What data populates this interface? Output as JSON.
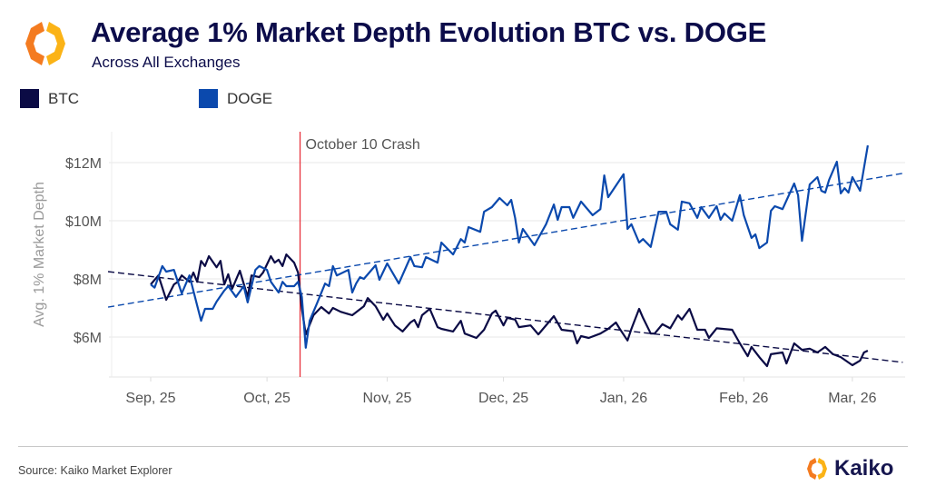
{
  "header": {
    "title": "Average 1% Market Depth Evolution BTC vs. DOGE",
    "subtitle": "Across All Exchanges",
    "logo": "kaiko-logo-icon"
  },
  "footer": {
    "source": "Source: Kaiko Market Explorer",
    "brand": "Kaiko"
  },
  "colors": {
    "btc": "#0b0b45",
    "doge": "#0b49ad",
    "annotation_line": "#e8323c",
    "logo_orange": "#f47b20",
    "logo_yellow": "#fbb316"
  },
  "chart_data": {
    "type": "line",
    "title": "Average 1% Market Depth Evolution BTC vs. DOGE",
    "subtitle": "Across All Exchanges",
    "xlabel": "",
    "ylabel": "Avg. 1% Market Depth",
    "legend_position": "top-left",
    "grid": "horizontal",
    "ylim": [
      4.6,
      13.1
    ],
    "yticks": [
      {
        "value": 6,
        "label": "$6M"
      },
      {
        "value": 8,
        "label": "$8M"
      },
      {
        "value": 10,
        "label": "$10M"
      },
      {
        "value": 12,
        "label": "$12M"
      }
    ],
    "xlim": [
      "2025-08-21",
      "2026-03-14"
    ],
    "xticks": [
      {
        "date": "2025-09-01",
        "label": "Sep, 25"
      },
      {
        "date": "2025-10-01",
        "label": "Oct, 25"
      },
      {
        "date": "2025-11-01",
        "label": "Nov, 25"
      },
      {
        "date": "2025-12-01",
        "label": "Dec, 25"
      },
      {
        "date": "2026-01-01",
        "label": "Jan, 26"
      },
      {
        "date": "2026-02-01",
        "label": "Feb, 26"
      },
      {
        "date": "2026-03-01",
        "label": "Mar, 26"
      }
    ],
    "annotations": [
      {
        "date": "2025-10-10",
        "label": "October 10 Crash"
      }
    ],
    "series": [
      {
        "name": "BTC",
        "unit": "$M",
        "points": [
          [
            "2025-09-01",
            7.81
          ],
          [
            "2025-09-03",
            8.12
          ],
          [
            "2025-09-05",
            7.28
          ],
          [
            "2025-09-07",
            7.81
          ],
          [
            "2025-09-08",
            7.9
          ],
          [
            "2025-09-09",
            8.12
          ],
          [
            "2025-09-11",
            7.9
          ],
          [
            "2025-09-12",
            8.22
          ],
          [
            "2025-09-13",
            7.9
          ],
          [
            "2025-09-14",
            8.62
          ],
          [
            "2025-09-15",
            8.44
          ],
          [
            "2025-09-16",
            8.78
          ],
          [
            "2025-09-18",
            8.4
          ],
          [
            "2025-09-19",
            8.62
          ],
          [
            "2025-09-20",
            7.81
          ],
          [
            "2025-09-21",
            8.16
          ],
          [
            "2025-09-22",
            7.66
          ],
          [
            "2025-09-24",
            8.28
          ],
          [
            "2025-09-26",
            7.38
          ],
          [
            "2025-09-27",
            8.12
          ],
          [
            "2025-09-29",
            8.06
          ],
          [
            "2025-09-30",
            8.22
          ],
          [
            "2025-10-02",
            8.78
          ],
          [
            "2025-10-03",
            8.56
          ],
          [
            "2025-10-04",
            8.66
          ],
          [
            "2025-10-05",
            8.44
          ],
          [
            "2025-10-06",
            8.84
          ],
          [
            "2025-10-08",
            8.56
          ],
          [
            "2025-10-09",
            8.22
          ],
          [
            "2025-10-10",
            6.97
          ],
          [
            "2025-10-11",
            6.09
          ],
          [
            "2025-10-13",
            6.75
          ],
          [
            "2025-10-15",
            7.03
          ],
          [
            "2025-10-17",
            6.81
          ],
          [
            "2025-10-18",
            7.0
          ],
          [
            "2025-10-20",
            6.87
          ],
          [
            "2025-10-23",
            6.75
          ],
          [
            "2025-10-26",
            7.06
          ],
          [
            "2025-10-27",
            7.34
          ],
          [
            "2025-10-29",
            7.06
          ],
          [
            "2025-10-31",
            6.59
          ],
          [
            "2025-11-01",
            6.81
          ],
          [
            "2025-11-03",
            6.4
          ],
          [
            "2025-11-05",
            6.19
          ],
          [
            "2025-11-07",
            6.5
          ],
          [
            "2025-11-08",
            6.59
          ],
          [
            "2025-11-09",
            6.34
          ],
          [
            "2025-11-10",
            6.75
          ],
          [
            "2025-11-12",
            6.97
          ],
          [
            "2025-11-14",
            6.34
          ],
          [
            "2025-11-15",
            6.28
          ],
          [
            "2025-11-18",
            6.19
          ],
          [
            "2025-11-20",
            6.56
          ],
          [
            "2025-11-21",
            6.12
          ],
          [
            "2025-11-24",
            5.97
          ],
          [
            "2025-11-26",
            6.25
          ],
          [
            "2025-11-28",
            6.81
          ],
          [
            "2025-11-29",
            6.91
          ],
          [
            "2025-12-01",
            6.4
          ],
          [
            "2025-12-02",
            6.66
          ],
          [
            "2025-12-04",
            6.6
          ],
          [
            "2025-12-05",
            6.34
          ],
          [
            "2025-12-08",
            6.4
          ],
          [
            "2025-12-10",
            6.09
          ],
          [
            "2025-12-14",
            6.72
          ],
          [
            "2025-12-16",
            6.25
          ],
          [
            "2025-12-19",
            6.2
          ],
          [
            "2025-12-20",
            5.78
          ],
          [
            "2025-12-21",
            6.03
          ],
          [
            "2025-12-23",
            5.97
          ],
          [
            "2025-12-26",
            6.12
          ],
          [
            "2025-12-28",
            6.28
          ],
          [
            "2025-12-30",
            6.5
          ],
          [
            "2025-12-31",
            6.28
          ],
          [
            "2026-01-02",
            5.88
          ],
          [
            "2026-01-03",
            6.28
          ],
          [
            "2026-01-05",
            6.97
          ],
          [
            "2026-01-06",
            6.66
          ],
          [
            "2026-01-08",
            6.12
          ],
          [
            "2026-01-09",
            6.12
          ],
          [
            "2026-01-11",
            6.44
          ],
          [
            "2026-01-13",
            6.3
          ],
          [
            "2026-01-15",
            6.75
          ],
          [
            "2026-01-16",
            6.6
          ],
          [
            "2026-01-18",
            6.97
          ],
          [
            "2026-01-20",
            6.25
          ],
          [
            "2026-01-22",
            6.25
          ],
          [
            "2026-01-23",
            5.97
          ],
          [
            "2026-01-25",
            6.3
          ],
          [
            "2026-01-29",
            6.25
          ],
          [
            "2026-01-31",
            5.78
          ],
          [
            "2026-02-02",
            5.34
          ],
          [
            "2026-02-03",
            5.66
          ],
          [
            "2026-02-05",
            5.31
          ],
          [
            "2026-02-07",
            5.0
          ],
          [
            "2026-02-08",
            5.41
          ],
          [
            "2026-02-11",
            5.47
          ],
          [
            "2026-02-12",
            5.09
          ],
          [
            "2026-02-14",
            5.78
          ],
          [
            "2026-02-16",
            5.56
          ],
          [
            "2026-02-18",
            5.6
          ],
          [
            "2026-02-20",
            5.47
          ],
          [
            "2026-02-22",
            5.66
          ],
          [
            "2026-02-24",
            5.41
          ],
          [
            "2026-02-26",
            5.31
          ],
          [
            "2026-03-01",
            5.03
          ],
          [
            "2026-03-03",
            5.19
          ],
          [
            "2026-03-04",
            5.47
          ],
          [
            "2026-03-05",
            5.53
          ]
        ],
        "trendline": [
          [
            "2025-08-21",
            8.25
          ],
          [
            "2026-03-14",
            5.13
          ]
        ]
      },
      {
        "name": "DOGE",
        "unit": "$M",
        "points": [
          [
            "2025-09-01",
            7.81
          ],
          [
            "2025-09-02",
            7.7
          ],
          [
            "2025-09-04",
            8.44
          ],
          [
            "2025-09-05",
            8.25
          ],
          [
            "2025-09-07",
            8.31
          ],
          [
            "2025-09-09",
            7.5
          ],
          [
            "2025-09-11",
            8.12
          ],
          [
            "2025-09-14",
            6.56
          ],
          [
            "2025-09-15",
            6.97
          ],
          [
            "2025-09-17",
            6.97
          ],
          [
            "2025-09-18",
            7.22
          ],
          [
            "2025-09-20",
            7.6
          ],
          [
            "2025-09-21",
            7.75
          ],
          [
            "2025-09-23",
            7.38
          ],
          [
            "2025-09-25",
            7.75
          ],
          [
            "2025-09-26",
            7.19
          ],
          [
            "2025-09-28",
            8.31
          ],
          [
            "2025-09-29",
            8.44
          ],
          [
            "2025-10-01",
            8.31
          ],
          [
            "2025-10-02",
            7.9
          ],
          [
            "2025-10-04",
            7.53
          ],
          [
            "2025-10-05",
            7.9
          ],
          [
            "2025-10-06",
            7.75
          ],
          [
            "2025-10-08",
            7.75
          ],
          [
            "2025-10-09",
            7.9
          ],
          [
            "2025-10-10",
            7.38
          ],
          [
            "2025-10-11",
            5.63
          ],
          [
            "2025-10-12",
            6.56
          ],
          [
            "2025-10-14",
            7.19
          ],
          [
            "2025-10-16",
            7.84
          ],
          [
            "2025-10-17",
            7.75
          ],
          [
            "2025-10-18",
            8.44
          ],
          [
            "2025-10-19",
            8.12
          ],
          [
            "2025-10-22",
            8.31
          ],
          [
            "2025-10-23",
            7.53
          ],
          [
            "2025-10-24",
            7.84
          ],
          [
            "2025-10-25",
            8.06
          ],
          [
            "2025-10-26",
            8.0
          ],
          [
            "2025-10-29",
            8.47
          ],
          [
            "2025-10-30",
            7.97
          ],
          [
            "2025-11-01",
            8.53
          ],
          [
            "2025-11-04",
            7.84
          ],
          [
            "2025-11-07",
            8.75
          ],
          [
            "2025-11-08",
            8.44
          ],
          [
            "2025-11-10",
            8.4
          ],
          [
            "2025-11-11",
            8.75
          ],
          [
            "2025-11-14",
            8.56
          ],
          [
            "2025-11-15",
            9.25
          ],
          [
            "2025-11-18",
            8.84
          ],
          [
            "2025-11-20",
            9.37
          ],
          [
            "2025-11-21",
            9.25
          ],
          [
            "2025-11-22",
            9.78
          ],
          [
            "2025-11-25",
            9.62
          ],
          [
            "2025-11-26",
            10.31
          ],
          [
            "2025-11-28",
            10.47
          ],
          [
            "2025-11-30",
            10.78
          ],
          [
            "2025-12-02",
            10.53
          ],
          [
            "2025-12-03",
            10.72
          ],
          [
            "2025-12-04",
            10.1
          ],
          [
            "2025-12-05",
            9.25
          ],
          [
            "2025-12-06",
            9.72
          ],
          [
            "2025-12-09",
            9.16
          ],
          [
            "2025-12-12",
            9.88
          ],
          [
            "2025-12-14",
            10.56
          ],
          [
            "2025-12-15",
            10.03
          ],
          [
            "2025-12-16",
            10.47
          ],
          [
            "2025-12-18",
            10.47
          ],
          [
            "2025-12-19",
            10.1
          ],
          [
            "2025-12-21",
            10.66
          ],
          [
            "2025-12-24",
            10.19
          ],
          [
            "2025-12-26",
            10.4
          ],
          [
            "2025-12-27",
            11.56
          ],
          [
            "2025-12-28",
            10.81
          ],
          [
            "2026-01-01",
            11.6
          ],
          [
            "2026-01-02",
            9.72
          ],
          [
            "2026-01-03",
            9.88
          ],
          [
            "2026-01-05",
            9.25
          ],
          [
            "2026-01-06",
            9.37
          ],
          [
            "2026-01-08",
            9.1
          ],
          [
            "2026-01-10",
            10.31
          ],
          [
            "2026-01-12",
            10.31
          ],
          [
            "2026-01-13",
            9.88
          ],
          [
            "2026-01-15",
            9.69
          ],
          [
            "2026-01-16",
            10.66
          ],
          [
            "2026-01-18",
            10.6
          ],
          [
            "2026-01-20",
            10.1
          ],
          [
            "2026-01-21",
            10.47
          ],
          [
            "2026-01-23",
            10.1
          ],
          [
            "2026-01-25",
            10.5
          ],
          [
            "2026-01-26",
            10.03
          ],
          [
            "2026-01-27",
            10.25
          ],
          [
            "2026-01-29",
            10.0
          ],
          [
            "2026-01-31",
            10.88
          ],
          [
            "2026-02-01",
            10.19
          ],
          [
            "2026-02-03",
            9.41
          ],
          [
            "2026-02-04",
            9.53
          ],
          [
            "2026-02-05",
            9.06
          ],
          [
            "2026-02-07",
            9.25
          ],
          [
            "2026-02-08",
            10.34
          ],
          [
            "2026-02-09",
            10.5
          ],
          [
            "2026-02-11",
            10.4
          ],
          [
            "2026-02-14",
            11.28
          ],
          [
            "2026-02-15",
            10.88
          ],
          [
            "2026-02-16",
            9.31
          ],
          [
            "2026-02-18",
            11.25
          ],
          [
            "2026-02-20",
            11.5
          ],
          [
            "2026-02-21",
            11.03
          ],
          [
            "2026-02-22",
            10.97
          ],
          [
            "2026-02-23",
            11.4
          ],
          [
            "2026-02-25",
            12.03
          ],
          [
            "2026-02-26",
            10.94
          ],
          [
            "2026-02-27",
            11.12
          ],
          [
            "2026-02-28",
            10.97
          ],
          [
            "2026-03-01",
            11.5
          ],
          [
            "2026-03-03",
            11.03
          ],
          [
            "2026-03-05",
            12.59
          ]
        ],
        "trendline": [
          [
            "2025-08-21",
            7.03
          ],
          [
            "2026-03-14",
            11.63
          ]
        ]
      }
    ]
  }
}
